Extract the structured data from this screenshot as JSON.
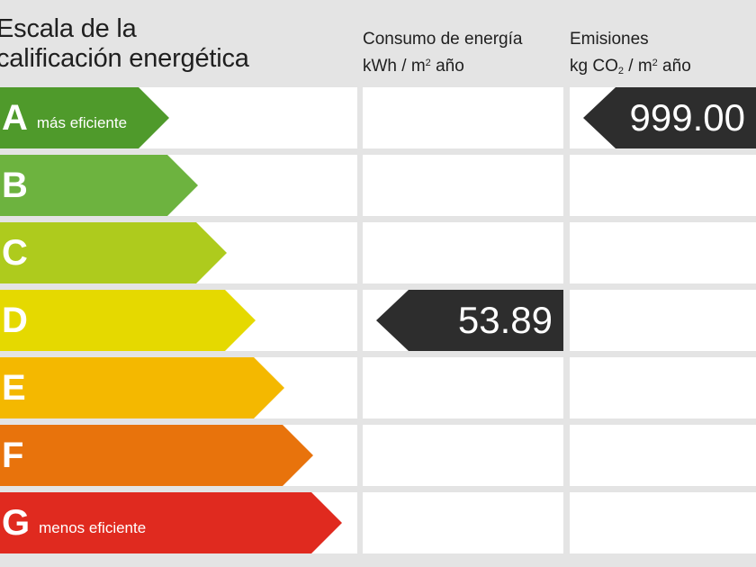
{
  "header": {
    "title_line1": "Escala de la",
    "title_line2": "calificación energética",
    "consumo_line1": "Consumo de energía",
    "consumo_unit_a": "kWh / m",
    "consumo_unit_sup": "2",
    "consumo_unit_b": " año",
    "emisiones_line1": "Emisiones",
    "emisiones_unit_a": "kg CO",
    "emisiones_unit_sub": "2",
    "emisiones_unit_b": " / m",
    "emisiones_unit_sup": "2",
    "emisiones_unit_c": " año"
  },
  "scale": [
    {
      "letter": "A",
      "note": "más eficiente",
      "color": "#4f9a2b"
    },
    {
      "letter": "B",
      "note": "",
      "color": "#6db33f"
    },
    {
      "letter": "C",
      "note": "",
      "color": "#aecb1d"
    },
    {
      "letter": "D",
      "note": "",
      "color": "#e5d900"
    },
    {
      "letter": "E",
      "note": "",
      "color": "#f4b800"
    },
    {
      "letter": "F",
      "note": "",
      "color": "#e8730c"
    },
    {
      "letter": "G",
      "note": "menos eficiente",
      "color": "#e02a1f"
    }
  ],
  "consumo": {
    "value": "53.89",
    "rating": "D",
    "color": "#2d2d2d"
  },
  "emisiones": {
    "value": "999.00",
    "rating": "A",
    "color": "#2d2d2d"
  }
}
